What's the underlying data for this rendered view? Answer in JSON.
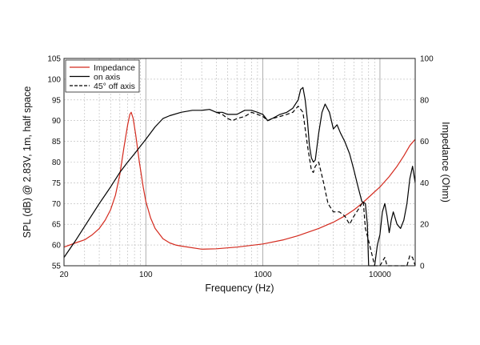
{
  "chart_data": {
    "type": "line",
    "xlabel": "Frequency (Hz)",
    "ylabel": "SPL (dB) @ 2.83V, 1m, half space",
    "y2label": "Impedance (Ohm)",
    "xscale": "log",
    "xlim": [
      20,
      20000
    ],
    "ylim": [
      55,
      105
    ],
    "y2lim": [
      0,
      100
    ],
    "grid": true,
    "legend_position": "top-left",
    "x_ticks": [
      {
        "value": 20,
        "label": "20"
      },
      {
        "value": 100,
        "label": "100"
      },
      {
        "value": 1000,
        "label": "1000"
      },
      {
        "value": 10000,
        "label": "10000"
      }
    ],
    "y_ticks": [
      55,
      60,
      65,
      70,
      75,
      80,
      85,
      90,
      95,
      100,
      105
    ],
    "y2_ticks": [
      0,
      20,
      40,
      60,
      80,
      100
    ],
    "series": [
      {
        "name": "Impedance",
        "axis": "right",
        "color": "#d42a1e",
        "dash": "solid",
        "points": [
          [
            20,
            9
          ],
          [
            25,
            11
          ],
          [
            30,
            12.5
          ],
          [
            35,
            15
          ],
          [
            40,
            18
          ],
          [
            45,
            22
          ],
          [
            50,
            27
          ],
          [
            55,
            34
          ],
          [
            60,
            44
          ],
          [
            65,
            57
          ],
          [
            70,
            68
          ],
          [
            73,
            73
          ],
          [
            75,
            74
          ],
          [
            78,
            71
          ],
          [
            82,
            63
          ],
          [
            88,
            50
          ],
          [
            95,
            38
          ],
          [
            100,
            31
          ],
          [
            110,
            23
          ],
          [
            120,
            18
          ],
          [
            140,
            13
          ],
          [
            160,
            11
          ],
          [
            180,
            10
          ],
          [
            200,
            9.5
          ],
          [
            300,
            8
          ],
          [
            400,
            8.2
          ],
          [
            600,
            9
          ],
          [
            1000,
            10.5
          ],
          [
            1500,
            12.5
          ],
          [
            2000,
            14.5
          ],
          [
            3000,
            18
          ],
          [
            4000,
            21
          ],
          [
            5000,
            24
          ],
          [
            6000,
            27
          ],
          [
            7000,
            30
          ],
          [
            8000,
            33
          ],
          [
            10000,
            38
          ],
          [
            12000,
            43
          ],
          [
            14000,
            48
          ],
          [
            16000,
            53
          ],
          [
            18000,
            58
          ],
          [
            20000,
            61
          ]
        ]
      },
      {
        "name": "on axis",
        "axis": "left",
        "color": "#000000",
        "dash": "solid",
        "points": [
          [
            20,
            57
          ],
          [
            25,
            61
          ],
          [
            30,
            64.5
          ],
          [
            40,
            70
          ],
          [
            50,
            74
          ],
          [
            60,
            77.5
          ],
          [
            70,
            80
          ],
          [
            80,
            82
          ],
          [
            100,
            85.5
          ],
          [
            120,
            88.5
          ],
          [
            140,
            90.5
          ],
          [
            160,
            91.2
          ],
          [
            200,
            92
          ],
          [
            250,
            92.5
          ],
          [
            300,
            92.5
          ],
          [
            350,
            92.7
          ],
          [
            400,
            92
          ],
          [
            450,
            92
          ],
          [
            500,
            91.5
          ],
          [
            600,
            91.5
          ],
          [
            700,
            92.5
          ],
          [
            800,
            92.5
          ],
          [
            900,
            92
          ],
          [
            1000,
            91.5
          ],
          [
            1100,
            90
          ],
          [
            1200,
            90.5
          ],
          [
            1400,
            91.5
          ],
          [
            1600,
            92
          ],
          [
            1800,
            93
          ],
          [
            2000,
            95
          ],
          [
            2100,
            97.5
          ],
          [
            2200,
            98
          ],
          [
            2300,
            95
          ],
          [
            2400,
            90
          ],
          [
            2500,
            84
          ],
          [
            2600,
            81
          ],
          [
            2700,
            80
          ],
          [
            2800,
            80.5
          ],
          [
            3000,
            87
          ],
          [
            3200,
            92
          ],
          [
            3400,
            94
          ],
          [
            3700,
            92
          ],
          [
            4000,
            88
          ],
          [
            4300,
            89
          ],
          [
            4600,
            87
          ],
          [
            5000,
            85
          ],
          [
            5500,
            82
          ],
          [
            6000,
            78
          ],
          [
            6500,
            74
          ],
          [
            7000,
            70.5
          ],
          [
            7500,
            70
          ],
          [
            7800,
            65
          ],
          [
            8000,
            55
          ],
          [
            8500,
            55
          ],
          [
            9000,
            55
          ],
          [
            9500,
            60
          ],
          [
            10000,
            62.5
          ],
          [
            10500,
            68
          ],
          [
            11000,
            70
          ],
          [
            11500,
            67
          ],
          [
            12000,
            63
          ],
          [
            12500,
            66
          ],
          [
            13000,
            68
          ],
          [
            14000,
            65
          ],
          [
            15000,
            64
          ],
          [
            16000,
            66
          ],
          [
            17000,
            70
          ],
          [
            18000,
            76
          ],
          [
            19000,
            79
          ],
          [
            20000,
            75
          ]
        ]
      },
      {
        "name": "45° off axis",
        "axis": "left",
        "color": "#000000",
        "dash": "dashed",
        "points": [
          [
            400,
            92
          ],
          [
            450,
            91.5
          ],
          [
            500,
            90.5
          ],
          [
            550,
            90
          ],
          [
            600,
            90.5
          ],
          [
            700,
            91
          ],
          [
            800,
            92
          ],
          [
            900,
            91.5
          ],
          [
            1000,
            91
          ],
          [
            1100,
            90
          ],
          [
            1200,
            90.5
          ],
          [
            1400,
            91
          ],
          [
            1600,
            91.5
          ],
          [
            1800,
            92
          ],
          [
            2000,
            93.5
          ],
          [
            2200,
            92
          ],
          [
            2400,
            84
          ],
          [
            2600,
            78
          ],
          [
            2700,
            77.5
          ],
          [
            2800,
            79
          ],
          [
            3000,
            80
          ],
          [
            3300,
            75
          ],
          [
            3600,
            70
          ],
          [
            4000,
            68
          ],
          [
            4500,
            68
          ],
          [
            5000,
            67
          ],
          [
            5500,
            65
          ],
          [
            6000,
            67
          ],
          [
            6500,
            68.5
          ],
          [
            7000,
            70
          ],
          [
            7200,
            70.5
          ],
          [
            7500,
            64
          ],
          [
            8000,
            61
          ],
          [
            8500,
            58
          ],
          [
            9000,
            55
          ],
          [
            9500,
            55
          ],
          [
            10000,
            55
          ],
          [
            11000,
            57
          ],
          [
            11500,
            55
          ],
          [
            12000,
            55
          ],
          [
            17000,
            55
          ],
          [
            18000,
            57.5
          ],
          [
            19000,
            57
          ],
          [
            20000,
            55
          ]
        ]
      }
    ]
  }
}
